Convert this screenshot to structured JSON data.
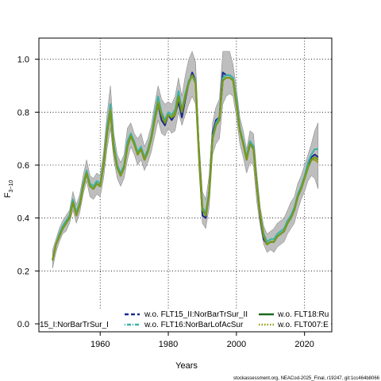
{
  "chart_data": {
    "type": "line",
    "xlabel": "Years",
    "ylabel": "F",
    "ylabel_sub": "3−10",
    "xlim": [
      1942,
      2028
    ],
    "ylim": [
      -0.03,
      1.08
    ],
    "x_ticks": [
      1960,
      1980,
      2000,
      2020
    ],
    "y_ticks": [
      0.0,
      0.2,
      0.4,
      0.6,
      0.8,
      1.0
    ],
    "y_tick_labels": [
      "0.0",
      "0.2",
      "0.4",
      "0.6",
      "0.8",
      "1.0"
    ],
    "grid": true,
    "legend_placement": "bottom",
    "legend": [
      {
        "label": "15_I:NorBarTrSur_I",
        "color": "#000000",
        "dash": "solid"
      },
      {
        "label": "w.o. FLT15_II:NorBarTrSur_II",
        "color": "#1a2a8a",
        "dash": "dashed"
      },
      {
        "label": "w.o. FLT16:NorBarLofAcSur",
        "color": "#3ab3a8",
        "dash": "dotdash"
      },
      {
        "label": "w.o. FLT18:Ru",
        "color": "#1a6b1a",
        "dash": "solid"
      },
      {
        "label": "w.o. FLT007:E",
        "color": "#9a9a1a",
        "dash": "dotted"
      }
    ],
    "x": [
      1946,
      1947,
      1948,
      1949,
      1950,
      1951,
      1952,
      1953,
      1954,
      1955,
      1956,
      1957,
      1958,
      1959,
      1960,
      1961,
      1962,
      1963,
      1964,
      1965,
      1966,
      1967,
      1968,
      1969,
      1970,
      1971,
      1972,
      1973,
      1974,
      1975,
      1976,
      1977,
      1978,
      1979,
      1980,
      1981,
      1982,
      1983,
      1984,
      1985,
      1986,
      1987,
      1988,
      1989,
      1990,
      1991,
      1992,
      1993,
      1994,
      1995,
      1996,
      1997,
      1998,
      1999,
      2000,
      2001,
      2002,
      2003,
      2004,
      2005,
      2006,
      2007,
      2008,
      2009,
      2010,
      2011,
      2012,
      2013,
      2014,
      2015,
      2016,
      2017,
      2018,
      2019,
      2020,
      2021,
      2022,
      2023,
      2024
    ],
    "band_lower": [
      0.21,
      0.27,
      0.31,
      0.34,
      0.35,
      0.38,
      0.43,
      0.38,
      0.42,
      0.49,
      0.54,
      0.48,
      0.47,
      0.49,
      0.48,
      0.55,
      0.66,
      0.74,
      0.62,
      0.55,
      0.52,
      0.55,
      0.62,
      0.67,
      0.64,
      0.6,
      0.62,
      0.58,
      0.61,
      0.65,
      0.71,
      0.77,
      0.72,
      0.71,
      0.74,
      0.72,
      0.73,
      0.8,
      0.75,
      0.79,
      0.83,
      0.86,
      0.83,
      0.58,
      0.38,
      0.36,
      0.44,
      0.64,
      0.68,
      0.7,
      0.83,
      0.86,
      0.87,
      0.86,
      0.78,
      0.68,
      0.63,
      0.57,
      0.61,
      0.6,
      0.46,
      0.37,
      0.3,
      0.27,
      0.28,
      0.27,
      0.29,
      0.3,
      0.31,
      0.34,
      0.36,
      0.38,
      0.43,
      0.47,
      0.5,
      0.54,
      0.56,
      0.55,
      0.51
    ],
    "band_upper": [
      0.28,
      0.32,
      0.36,
      0.39,
      0.41,
      0.43,
      0.5,
      0.45,
      0.49,
      0.56,
      0.62,
      0.56,
      0.55,
      0.57,
      0.56,
      0.65,
      0.79,
      0.9,
      0.72,
      0.64,
      0.61,
      0.64,
      0.74,
      0.76,
      0.72,
      0.7,
      0.72,
      0.67,
      0.7,
      0.75,
      0.83,
      0.9,
      0.85,
      0.83,
      0.84,
      0.83,
      0.86,
      0.93,
      0.86,
      0.94,
      1.0,
      1.03,
      0.99,
      0.7,
      0.5,
      0.47,
      0.56,
      0.76,
      0.82,
      0.85,
      1.03,
      1.03,
      1.03,
      0.98,
      0.89,
      0.78,
      0.73,
      0.66,
      0.73,
      0.72,
      0.57,
      0.44,
      0.37,
      0.34,
      0.35,
      0.36,
      0.38,
      0.39,
      0.4,
      0.43,
      0.46,
      0.48,
      0.53,
      0.56,
      0.6,
      0.64,
      0.68,
      0.73,
      0.76
    ],
    "series": [
      {
        "name": "15_I:NorBarTrSur_I",
        "color": "#7a9a1a",
        "values": [
          0.24,
          0.3,
          0.33,
          0.36,
          0.38,
          0.4,
          0.46,
          0.41,
          0.45,
          0.52,
          0.57,
          0.52,
          0.51,
          0.53,
          0.52,
          0.6,
          0.72,
          0.8,
          0.66,
          0.59,
          0.56,
          0.59,
          0.67,
          0.71,
          0.68,
          0.64,
          0.66,
          0.62,
          0.65,
          0.7,
          0.77,
          0.83,
          0.79,
          0.76,
          0.79,
          0.78,
          0.79,
          0.86,
          0.8,
          0.86,
          0.91,
          0.94,
          0.91,
          0.64,
          0.43,
          0.41,
          0.49,
          0.7,
          0.75,
          0.77,
          0.92,
          0.93,
          0.93,
          0.92,
          0.83,
          0.73,
          0.68,
          0.62,
          0.68,
          0.66,
          0.52,
          0.41,
          0.33,
          0.3,
          0.31,
          0.31,
          0.33,
          0.34,
          0.35,
          0.38,
          0.4,
          0.43,
          0.48,
          0.51,
          0.55,
          0.59,
          0.62,
          0.63,
          0.62
        ]
      },
      {
        "name": "w.o. FLT15_II:NorBarTrSur_II",
        "color": "#1a2a8a",
        "values": [
          0.24,
          0.3,
          0.33,
          0.36,
          0.38,
          0.4,
          0.46,
          0.41,
          0.45,
          0.52,
          0.57,
          0.52,
          0.51,
          0.53,
          0.52,
          0.6,
          0.72,
          0.8,
          0.66,
          0.59,
          0.56,
          0.59,
          0.67,
          0.71,
          0.68,
          0.64,
          0.66,
          0.62,
          0.65,
          0.7,
          0.77,
          0.83,
          0.77,
          0.75,
          0.79,
          0.77,
          0.79,
          0.84,
          0.78,
          0.85,
          0.91,
          0.95,
          0.92,
          0.65,
          0.41,
          0.4,
          0.5,
          0.72,
          0.77,
          0.78,
          0.95,
          0.94,
          0.94,
          0.93,
          0.83,
          0.73,
          0.68,
          0.63,
          0.69,
          0.67,
          0.52,
          0.4,
          0.32,
          0.3,
          0.31,
          0.31,
          0.33,
          0.34,
          0.35,
          0.38,
          0.4,
          0.43,
          0.48,
          0.51,
          0.55,
          0.6,
          0.63,
          0.64,
          0.63
        ]
      },
      {
        "name": "w.o. FLT16:NorBarLofAcSur",
        "color": "#3ab3a8",
        "values": [
          0.24,
          0.3,
          0.34,
          0.37,
          0.39,
          0.41,
          0.47,
          0.42,
          0.46,
          0.53,
          0.58,
          0.53,
          0.52,
          0.54,
          0.53,
          0.61,
          0.74,
          0.83,
          0.68,
          0.6,
          0.57,
          0.6,
          0.69,
          0.72,
          0.69,
          0.65,
          0.67,
          0.63,
          0.66,
          0.71,
          0.79,
          0.86,
          0.8,
          0.77,
          0.8,
          0.79,
          0.81,
          0.88,
          0.81,
          0.87,
          0.92,
          0.94,
          0.92,
          0.65,
          0.44,
          0.42,
          0.5,
          0.71,
          0.76,
          0.78,
          0.93,
          0.94,
          0.94,
          0.93,
          0.85,
          0.74,
          0.69,
          0.63,
          0.69,
          0.67,
          0.53,
          0.41,
          0.34,
          0.31,
          0.32,
          0.32,
          0.34,
          0.35,
          0.36,
          0.39,
          0.41,
          0.44,
          0.49,
          0.52,
          0.56,
          0.61,
          0.64,
          0.66,
          0.66
        ]
      },
      {
        "name": "w.o. FLT18:Ru",
        "color": "#1a6b1a",
        "values": [
          0.24,
          0.3,
          0.33,
          0.36,
          0.38,
          0.4,
          0.46,
          0.41,
          0.45,
          0.52,
          0.57,
          0.52,
          0.51,
          0.53,
          0.52,
          0.6,
          0.72,
          0.8,
          0.66,
          0.59,
          0.56,
          0.59,
          0.67,
          0.71,
          0.68,
          0.64,
          0.66,
          0.62,
          0.65,
          0.7,
          0.77,
          0.83,
          0.79,
          0.76,
          0.79,
          0.78,
          0.79,
          0.86,
          0.8,
          0.86,
          0.91,
          0.94,
          0.91,
          0.64,
          0.43,
          0.41,
          0.49,
          0.7,
          0.75,
          0.77,
          0.92,
          0.93,
          0.93,
          0.92,
          0.83,
          0.73,
          0.68,
          0.62,
          0.68,
          0.66,
          0.52,
          0.41,
          0.33,
          0.3,
          0.31,
          0.31,
          0.33,
          0.34,
          0.35,
          0.38,
          0.4,
          0.43,
          0.48,
          0.51,
          0.55,
          0.59,
          0.62,
          0.63,
          0.62
        ]
      },
      {
        "name": "w.o. FLT007:E",
        "color": "#9a9a1a",
        "values": [
          0.24,
          0.3,
          0.33,
          0.36,
          0.38,
          0.4,
          0.46,
          0.41,
          0.45,
          0.52,
          0.57,
          0.52,
          0.51,
          0.53,
          0.52,
          0.6,
          0.72,
          0.81,
          0.66,
          0.59,
          0.56,
          0.59,
          0.67,
          0.71,
          0.68,
          0.64,
          0.66,
          0.62,
          0.65,
          0.7,
          0.77,
          0.84,
          0.79,
          0.76,
          0.79,
          0.78,
          0.8,
          0.86,
          0.8,
          0.86,
          0.91,
          0.94,
          0.91,
          0.64,
          0.43,
          0.41,
          0.49,
          0.7,
          0.75,
          0.77,
          0.92,
          0.93,
          0.93,
          0.92,
          0.83,
          0.73,
          0.68,
          0.62,
          0.68,
          0.66,
          0.52,
          0.41,
          0.33,
          0.3,
          0.31,
          0.31,
          0.33,
          0.34,
          0.35,
          0.38,
          0.4,
          0.43,
          0.48,
          0.51,
          0.55,
          0.59,
          0.62,
          0.62,
          0.61
        ]
      }
    ],
    "footer": "stockassessment.org, NEACod-2025_Final, r19247, git:1cc464b8066"
  },
  "colors": {
    "band": "#bebebe",
    "band_edge": "#7f7f7f",
    "grid": "#000000",
    "axis": "#000000",
    "legend_bg": "#ffffff"
  }
}
